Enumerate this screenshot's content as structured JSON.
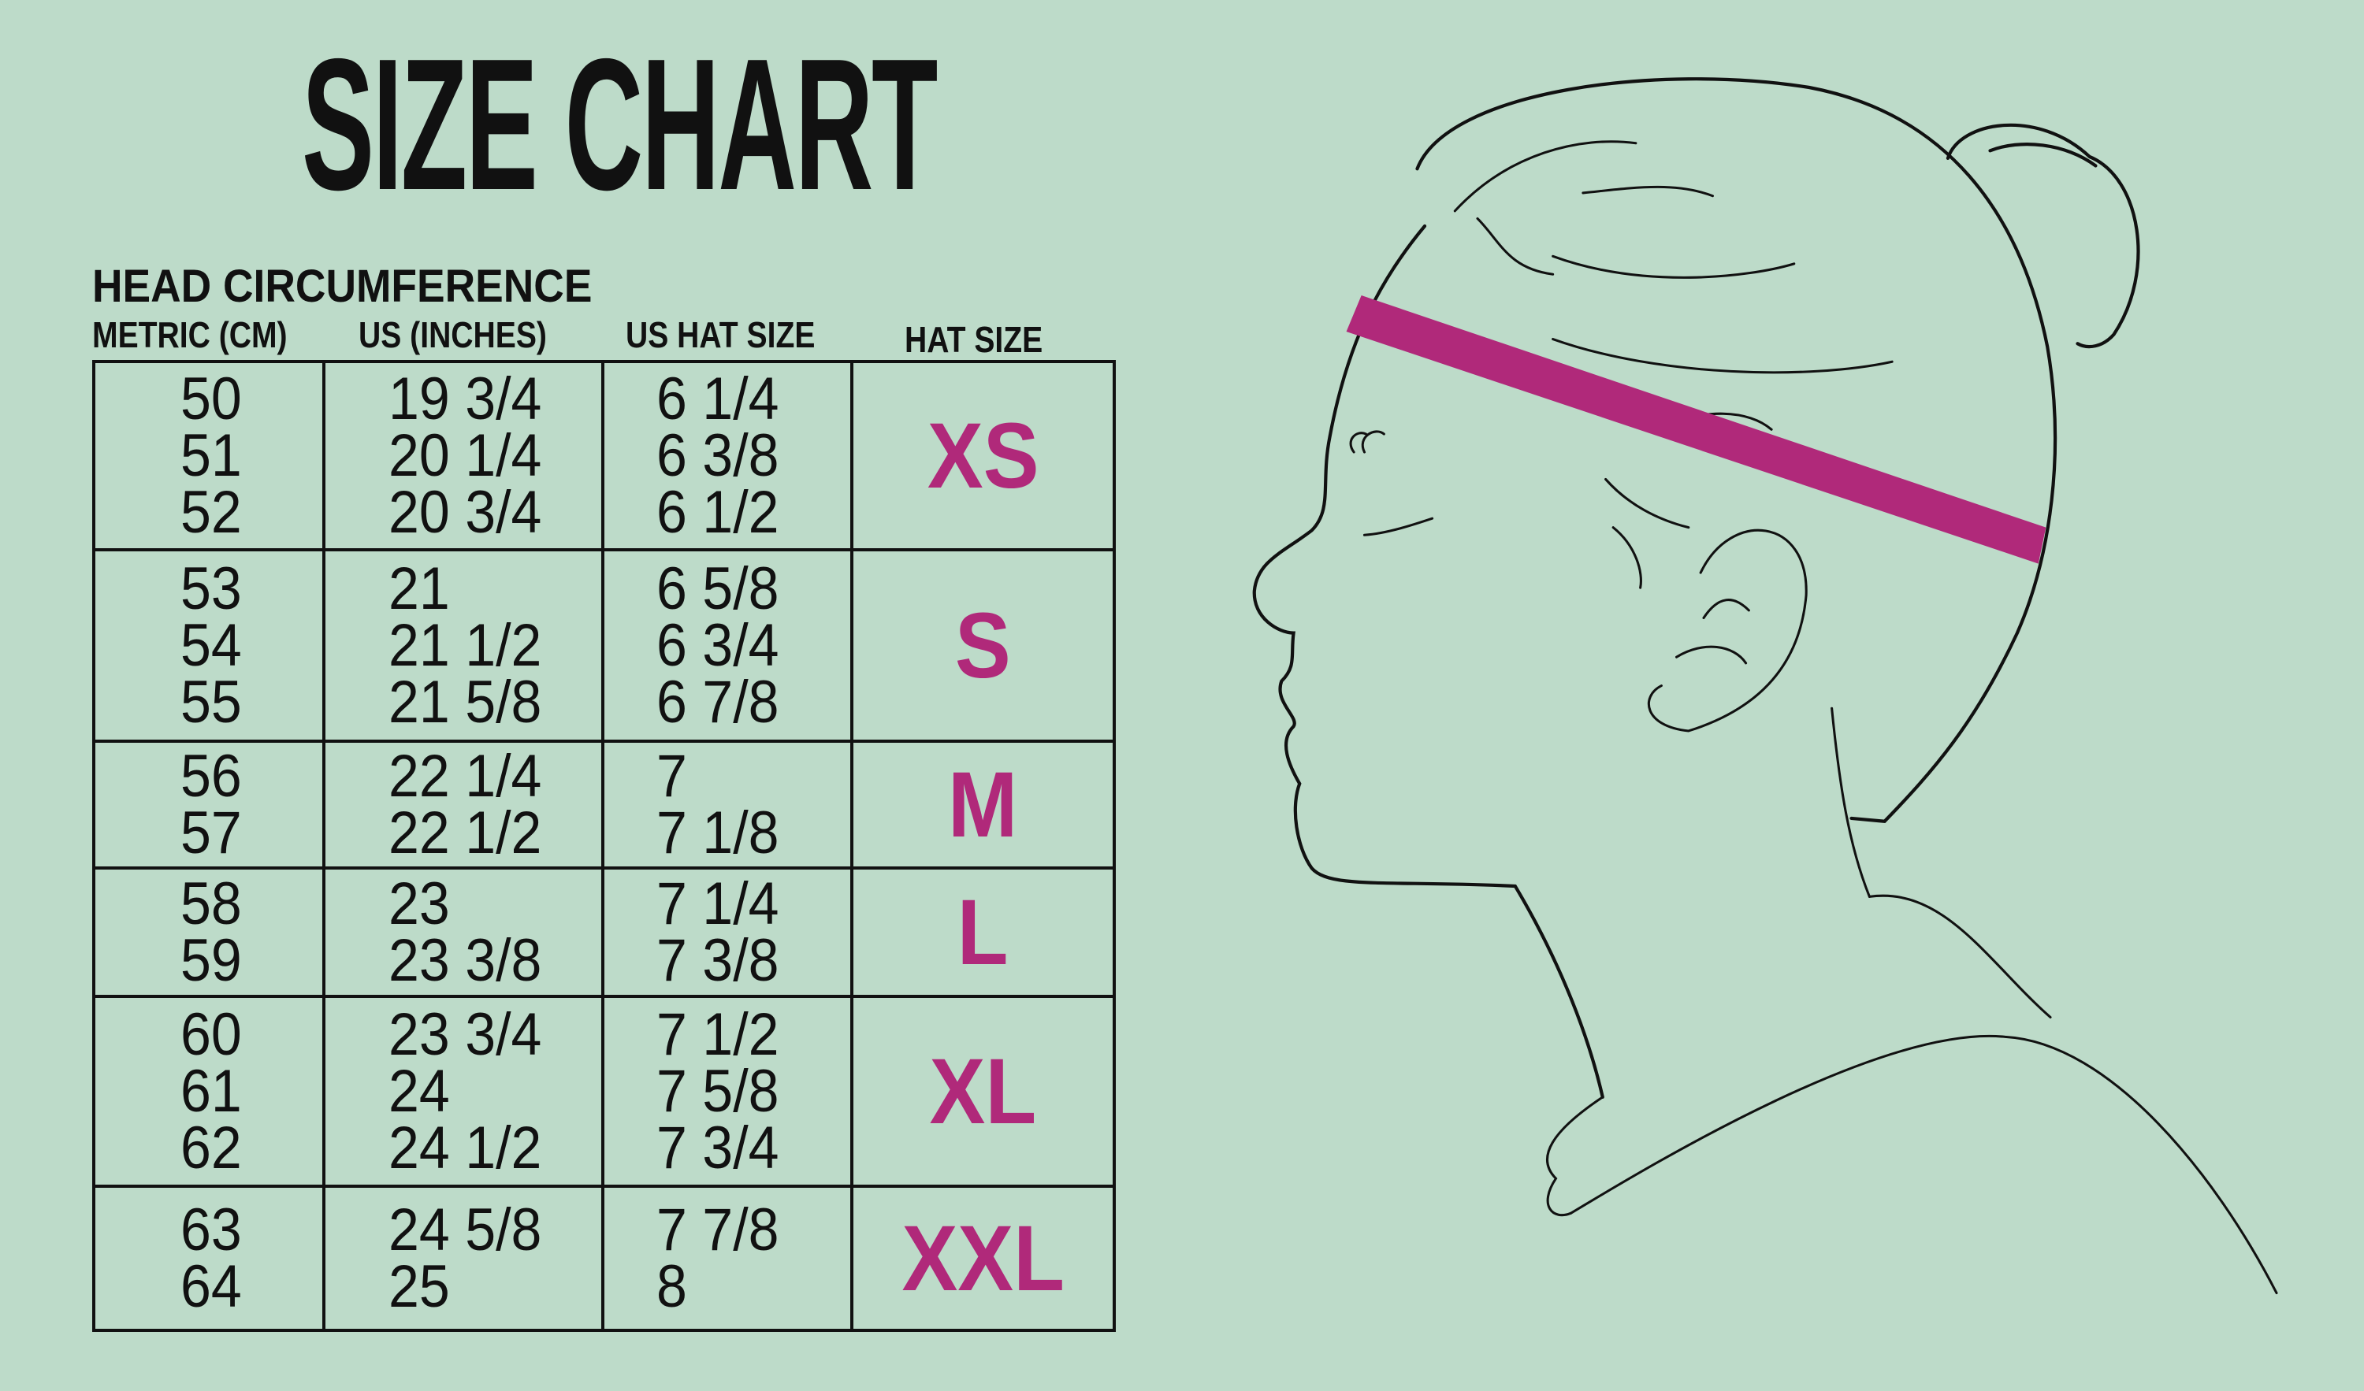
{
  "title": "SIZE CHART",
  "subtitle": "HEAD CIRCUMFERENCE",
  "columns": [
    "METRIC (CM)",
    "US (INCHES)",
    "US HAT SIZE",
    "HAT SIZE"
  ],
  "colors": {
    "background": "#bddbc9",
    "accent": "#b0297a",
    "text": "#111111"
  },
  "rows": [
    {
      "metric": [
        "50",
        "51",
        "52"
      ],
      "inches": [
        "19 3/4",
        "20 1/4",
        "20 3/4"
      ],
      "us_hat": [
        "6 1/4",
        "6 3/8",
        "6 1/2"
      ],
      "size": "XS"
    },
    {
      "metric": [
        "53",
        "54",
        "55"
      ],
      "inches": [
        "21",
        "21 1/2",
        "21 5/8"
      ],
      "us_hat": [
        "6 5/8",
        "6 3/4",
        "6 7/8"
      ],
      "size": "S"
    },
    {
      "metric": [
        "56",
        "57"
      ],
      "inches": [
        "22 1/4",
        "22 1/2"
      ],
      "us_hat": [
        "7",
        "7 1/8"
      ],
      "size": "M"
    },
    {
      "metric": [
        "58",
        "59"
      ],
      "inches": [
        "23",
        "23 3/8"
      ],
      "us_hat": [
        "7 1/4",
        "7 3/8"
      ],
      "size": "L"
    },
    {
      "metric": [
        "60",
        "61",
        "62"
      ],
      "inches": [
        "23 3/4",
        "24",
        "24 1/2"
      ],
      "us_hat": [
        "7 1/2",
        "7 5/8",
        "7 3/4"
      ],
      "size": "XL"
    },
    {
      "metric": [
        "63",
        "64"
      ],
      "inches": [
        "24 5/8",
        "25"
      ],
      "us_hat": [
        "7 7/8",
        "8"
      ],
      "size": "XXL"
    }
  ],
  "illustration": {
    "icon": "head-profile-with-headband-icon"
  }
}
